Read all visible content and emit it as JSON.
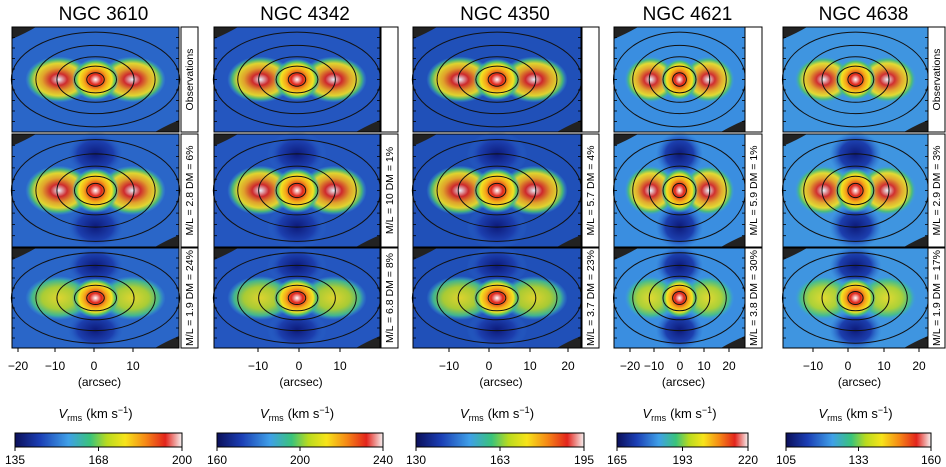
{
  "figure": {
    "xlabel": "(arcsec)",
    "rows": [
      {
        "key": "obs"
      },
      {
        "key": "mod1"
      },
      {
        "key": "mod2"
      }
    ],
    "columns": [
      {
        "title": "NGC 3610",
        "row_labels": [
          "Observations",
          "M/L = 2.8 DM = 6%",
          "M/L = 1.9 DM = 24%"
        ],
        "ticks": [
          "−20",
          "−10",
          "0",
          "10"
        ],
        "cbar": {
          "label": "V",
          "sub": "rms",
          "units": "(km s",
          "sup": "−1",
          "close": ")",
          "ticks": [
            "135",
            "168",
            "200"
          ]
        },
        "palette": {
          "bg": "#2a66c8"
        }
      },
      {
        "title": "NGC 4342",
        "row_labels": [
          "",
          "M/L = 10 DM = 1%",
          "M/L = 6.8 DM = 8%"
        ],
        "ticks": [
          "−10",
          "0",
          "10"
        ],
        "cbar": {
          "label": "V",
          "sub": "rms",
          "units": "(km s",
          "sup": "−1",
          "close": ")",
          "ticks": [
            "160",
            "200",
            "240"
          ]
        },
        "palette": {
          "bg": "#2456bf"
        }
      },
      {
        "title": "NGC 4350",
        "row_labels": [
          "",
          "M/L = 5.7 DM = 4%",
          "M/L = 3.7 DM = 23%"
        ],
        "ticks": [
          "−10",
          "0",
          "10",
          "20"
        ],
        "cbar": {
          "label": "V",
          "sub": "rms",
          "units": "(km s",
          "sup": "−1",
          "close": ")",
          "ticks": [
            "130",
            "163",
            "195"
          ]
        },
        "palette": {
          "bg": "#2050b8"
        }
      },
      {
        "title": "NGC 4621",
        "row_labels": [
          "",
          "M/L = 5.9 DM = 1%",
          "M/L = 3.8 DM = 30%"
        ],
        "ticks": [
          "−20",
          "−10",
          "0",
          "10",
          "20"
        ],
        "cbar": {
          "label": "V",
          "sub": "rms",
          "units": "(km s",
          "sup": "−1",
          "close": ")",
          "ticks": [
            "165",
            "193",
            "220"
          ]
        },
        "palette": {
          "bg": "#3a8ee0"
        }
      },
      {
        "title": "NGC 4638",
        "row_labels": [
          "Observations",
          "M/L = 2.9 DM = 3%",
          "M/L = 1.9 DM = 17%"
        ],
        "ticks": [
          "−10",
          "0",
          "10",
          "20"
        ],
        "cbar": {
          "label": "V",
          "sub": "rms",
          "units": "(km s",
          "sup": "−1",
          "close": ")",
          "ticks": [
            "105",
            "133",
            "160"
          ]
        },
        "palette": {
          "bg": "#3f95e0"
        }
      }
    ]
  }
}
